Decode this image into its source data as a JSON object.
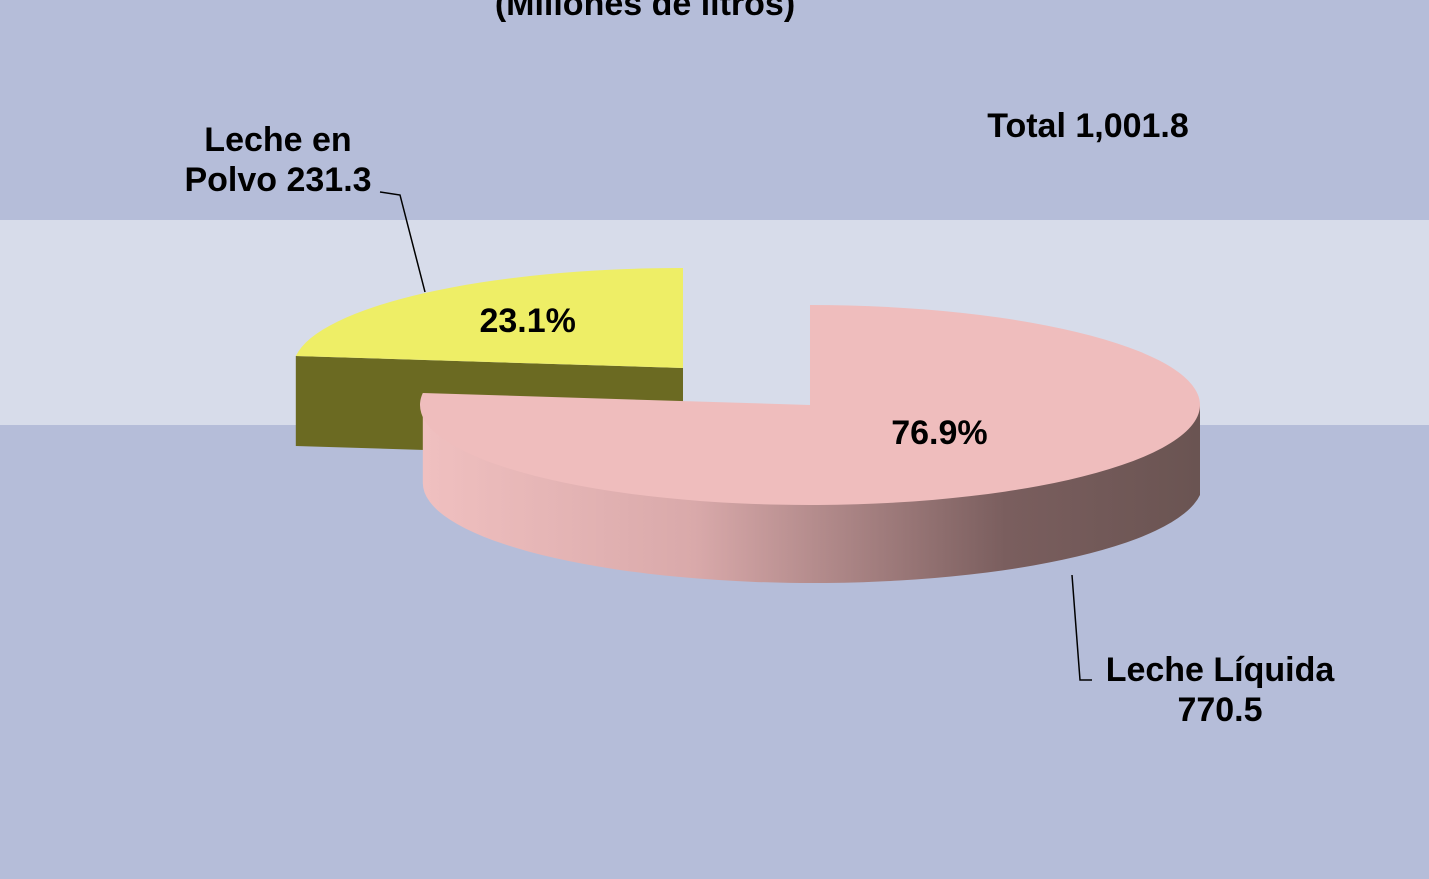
{
  "chart_data": {
    "type": "pie3d",
    "title": "(Millones de litros)",
    "annotation": "Total 1,001.8",
    "categories": [
      "Leche en Polvo",
      "Leche Líquida"
    ],
    "values": [
      231.3,
      770.5
    ],
    "percentages": [
      {
        "value": 23.1,
        "label": "23.1%"
      },
      {
        "value": 76.9,
        "label": "76.9%"
      }
    ],
    "colors": [
      "#eeee66",
      "#efbdbd"
    ]
  }
}
